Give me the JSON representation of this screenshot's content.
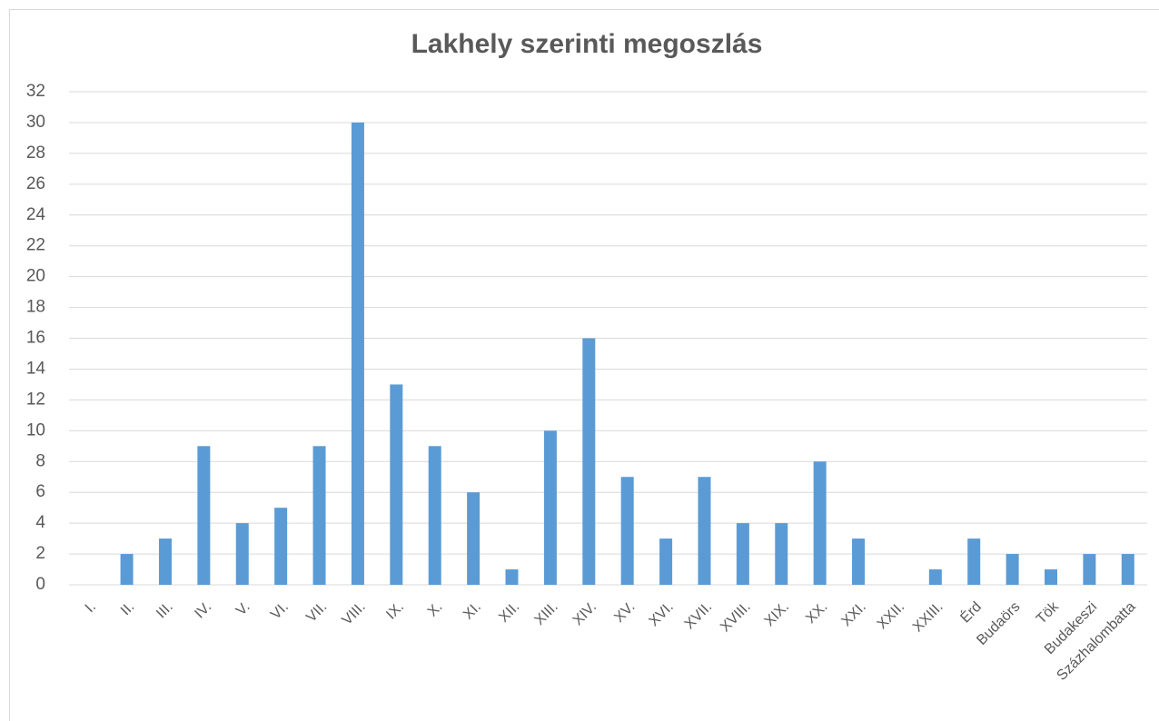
{
  "chart_data": {
    "type": "bar",
    "title": "Lakhely szerinti megoszlás",
    "categories": [
      "I.",
      "II.",
      "III.",
      "IV.",
      "V.",
      "VI.",
      "VII.",
      "VIII.",
      "IX.",
      "X.",
      "XI.",
      "XII.",
      "XIII.",
      "XIV.",
      "XV.",
      "XVI.",
      "XVII.",
      "XVIII.",
      "XIX.",
      "XX.",
      "XXI.",
      "XXII.",
      "XXIII.",
      "Érd",
      "Budaörs",
      "Tök",
      "Budakeszi",
      "Százhalombatta"
    ],
    "values": [
      0,
      2,
      3,
      9,
      4,
      5,
      9,
      30,
      13,
      9,
      6,
      1,
      10,
      16,
      7,
      3,
      7,
      4,
      4,
      8,
      3,
      0,
      1,
      3,
      2,
      1,
      2,
      2
    ],
    "color": "#5b9bd5",
    "ylim": [
      0,
      32
    ],
    "yticks": [
      0,
      2,
      4,
      6,
      8,
      10,
      12,
      14,
      16,
      18,
      20,
      22,
      24,
      26,
      28,
      30,
      32
    ],
    "grid": true
  }
}
